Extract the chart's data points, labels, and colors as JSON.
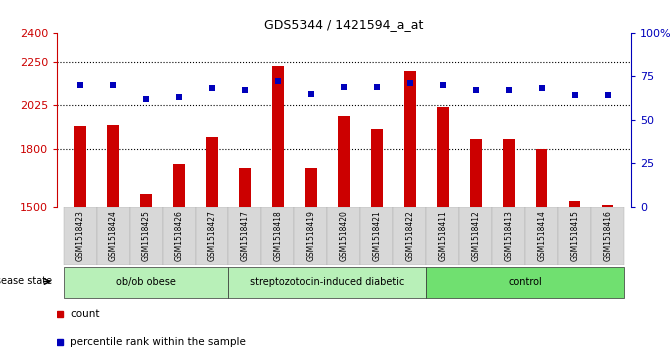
{
  "title": "GDS5344 / 1421594_a_at",
  "samples": [
    "GSM1518423",
    "GSM1518424",
    "GSM1518425",
    "GSM1518426",
    "GSM1518427",
    "GSM1518417",
    "GSM1518418",
    "GSM1518419",
    "GSM1518420",
    "GSM1518421",
    "GSM1518422",
    "GSM1518411",
    "GSM1518412",
    "GSM1518413",
    "GSM1518414",
    "GSM1518415",
    "GSM1518416"
  ],
  "counts": [
    1920,
    1925,
    1565,
    1720,
    1860,
    1700,
    2230,
    1700,
    1970,
    1900,
    2200,
    2015,
    1850,
    1850,
    1800,
    1530,
    1510
  ],
  "percentile_ranks": [
    70,
    70,
    62,
    63,
    68,
    67,
    72,
    65,
    69,
    69,
    71,
    70,
    67,
    67,
    68,
    64,
    64
  ],
  "group_defs": [
    {
      "label": "ob/ob obese",
      "indices": [
        0,
        4
      ],
      "color": "#b8f0b8"
    },
    {
      "label": "streptozotocin-induced diabetic",
      "indices": [
        5,
        10
      ],
      "color": "#b8f0b8"
    },
    {
      "label": "control",
      "indices": [
        11,
        16
      ],
      "color": "#70e070"
    }
  ],
  "ylim_left": [
    1500,
    2400
  ],
  "ylim_right": [
    0,
    100
  ],
  "yticks_left": [
    1500,
    1800,
    2025,
    2250,
    2400
  ],
  "yticks_right": [
    0,
    25,
    50,
    75,
    100
  ],
  "bar_color": "#cc0000",
  "dot_color": "#0000bb",
  "background_color": "#ffffff",
  "plot_bg_color": "#ffffff",
  "tick_area_bg": "#d8d8d8",
  "label_color_left": "#cc0000",
  "label_color_right": "#0000bb",
  "grid_yticks": [
    1800,
    2025,
    2250
  ]
}
